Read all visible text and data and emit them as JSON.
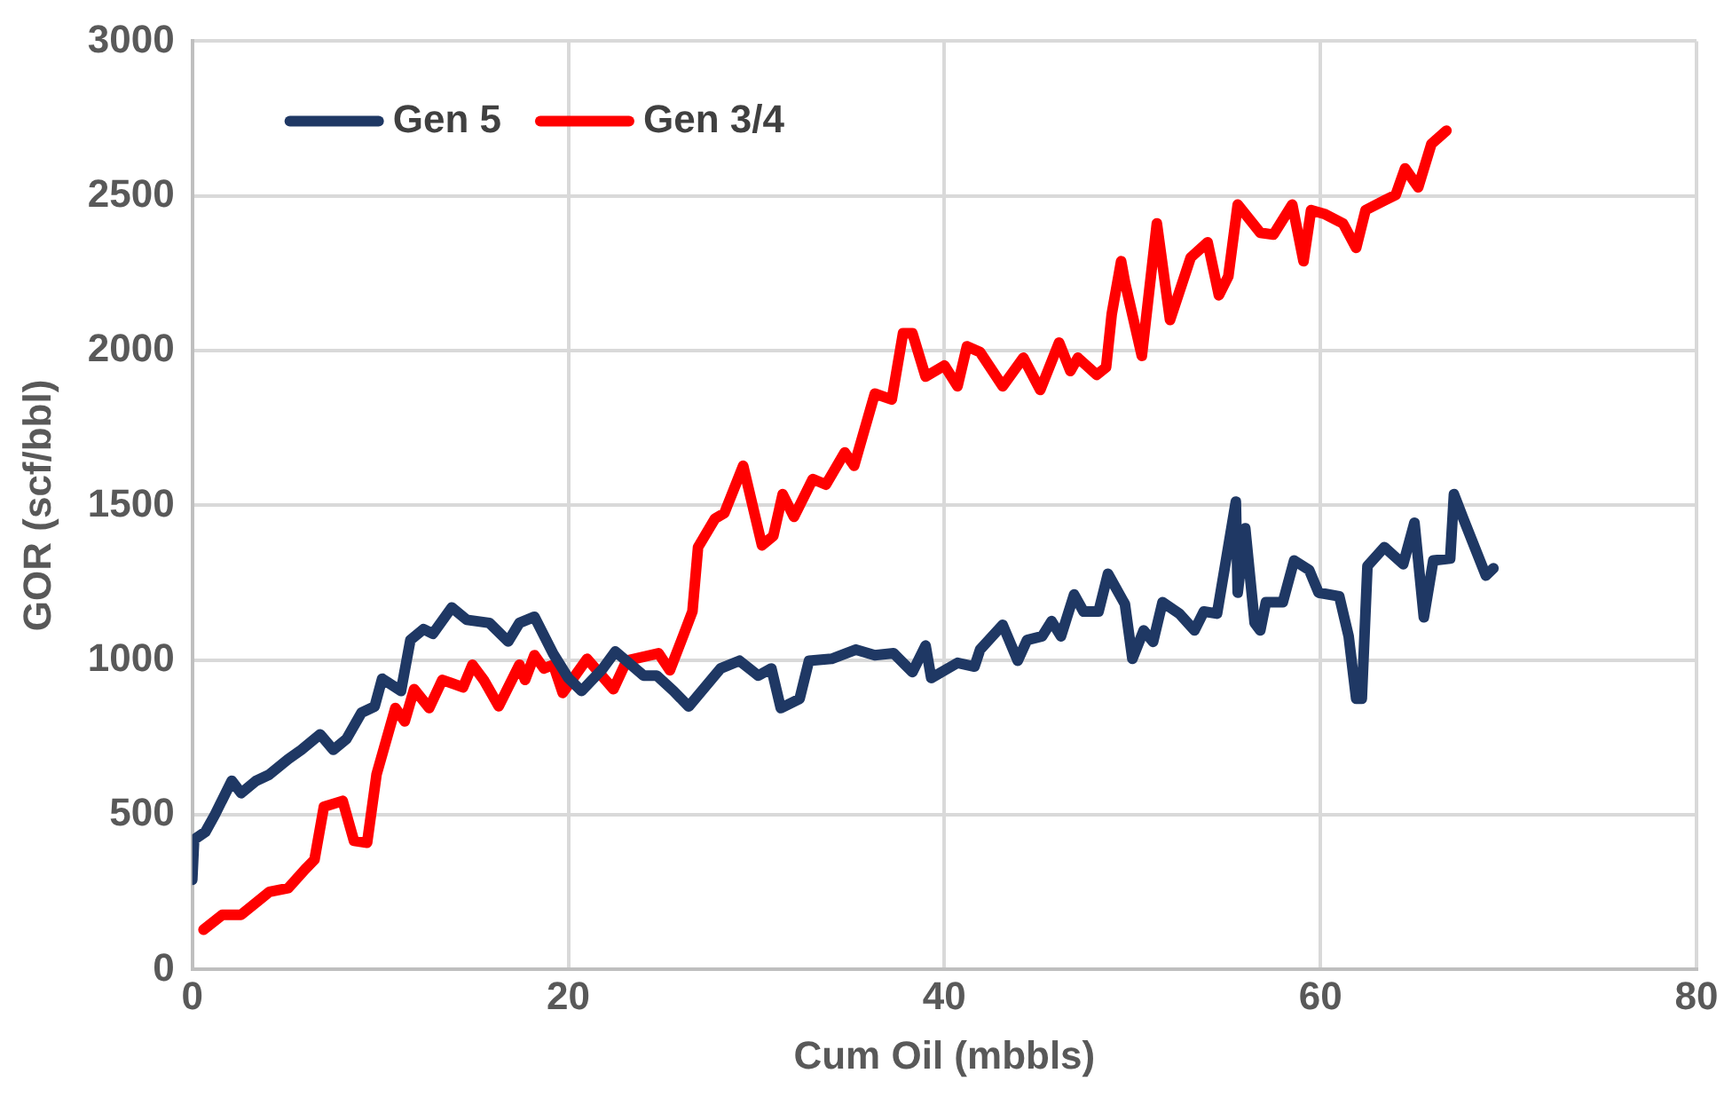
{
  "chart_data": {
    "type": "line",
    "xlabel": "Cum Oil (mbbls)",
    "ylabel": "GOR (scf/bbl)",
    "xlim": [
      0,
      80
    ],
    "xticks": [
      0,
      20,
      40,
      60,
      80
    ],
    "ylim": [
      0,
      3000
    ],
    "yticks": [
      0,
      500,
      1000,
      1500,
      2000,
      2500,
      3000
    ],
    "grid": true,
    "legend": "top left",
    "marker": "none",
    "line_style": "solid",
    "series": [
      {
        "name": "Gen 5",
        "color": "#1f3864",
        "x": [
          0,
          0.1,
          0.7,
          1.2,
          2.1,
          2.6,
          3.4,
          4.1,
          5.1,
          5.8,
          6.8,
          7.5,
          8.2,
          9.0,
          9.7,
          10.1,
          11.1,
          11.6,
          12.3,
          12.8,
          13.8,
          14.6,
          15.8,
          16.8,
          17.4,
          18.2,
          19.2,
          20.0,
          20.7,
          21.8,
          22.5,
          24.0,
          24.7,
          25.6,
          26.4,
          28.1,
          29.1,
          30.1,
          30.8,
          31.3,
          32.3,
          32.8,
          34.0,
          35.3,
          36.3,
          37.3,
          38.3,
          39.0,
          39.3,
          40.7,
          41.6,
          41.9,
          43.1,
          43.9,
          44.4,
          45.2,
          45.7,
          46.2,
          46.9,
          47.4,
          48.2,
          48.7,
          49.6,
          50.0,
          50.6,
          51.1,
          51.6,
          52.5,
          53.3,
          53.8,
          54.5,
          55.5,
          55.6,
          56.0,
          56.5,
          56.8,
          57.1,
          58.0,
          58.6,
          59.4,
          59.9,
          61.0,
          61.5,
          61.9,
          62.2,
          62.5,
          63.4,
          64.4,
          65.0,
          65.5,
          66.0,
          66.9,
          67.1,
          67.6,
          68.2,
          68.8,
          69.2
        ],
        "values": [
          290,
          420,
          445,
          500,
          610,
          570,
          610,
          630,
          680,
          710,
          760,
          710,
          745,
          830,
          850,
          940,
          900,
          1065,
          1100,
          1085,
          1170,
          1130,
          1120,
          1060,
          1120,
          1140,
          1020,
          942,
          900,
          970,
          1028,
          950,
          950,
          900,
          850,
          973,
          998,
          950,
          973,
          845,
          875,
          998,
          1004,
          1034,
          1016,
          1022,
          961,
          1047,
          942,
          991,
          979,
          1034,
          1114,
          998,
          1065,
          1077,
          1126,
          1077,
          1212,
          1157,
          1157,
          1279,
          1181,
          1004,
          1096,
          1059,
          1187,
          1150,
          1096,
          1157,
          1150,
          1512,
          1218,
          1426,
          1120,
          1096,
          1187,
          1187,
          1322,
          1291,
          1218,
          1206,
          1077,
          875,
          875,
          1304,
          1365,
          1310,
          1444,
          1138,
          1322,
          1328,
          1536,
          1457,
          1365,
          1273,
          1297
        ]
      },
      {
        "name": "Gen 3/4",
        "color": "#ff0000",
        "x": [
          0.6,
          1.6,
          2.6,
          4.1,
          5.1,
          6.0,
          6.5,
          7.0,
          8.0,
          8.6,
          9.3,
          9.8,
          10.8,
          11.3,
          11.8,
          12.6,
          13.3,
          14.4,
          14.9,
          15.5,
          16.3,
          17.4,
          17.7,
          18.2,
          18.7,
          19.2,
          19.7,
          21.0,
          22.4,
          23.1,
          24.8,
          25.4,
          26.1,
          26.6,
          26.9,
          27.8,
          28.3,
          29.3,
          30.3,
          30.9,
          31.4,
          32.0,
          33.0,
          33.7,
          34.7,
          35.2,
          36.3,
          37.2,
          37.8,
          38.3,
          39.0,
          40.0,
          40.7,
          41.2,
          41.9,
          43.1,
          44.2,
          45.1,
          46.1,
          46.7,
          47.1,
          48.1,
          48.6,
          48.9,
          49.4,
          49.6,
          50.5,
          51.3,
          52.0,
          53.1,
          54.0,
          54.6,
          55.1,
          55.6,
          56.8,
          57.5,
          58.5,
          59.1,
          59.5,
          60.2,
          61.2,
          61.9,
          62.4,
          63.4,
          64.0,
          64.5,
          65.2,
          65.9,
          66.7
        ],
        "values": [
          129,
          177,
          177,
          251,
          263,
          324,
          355,
          526,
          545,
          416,
          410,
          630,
          845,
          802,
          906,
          845,
          936,
          912,
          985,
          936,
          851,
          985,
          936,
          1016,
          973,
          985,
          894,
          1004,
          906,
          998,
          1022,
          967,
          1077,
          1157,
          1365,
          1457,
          1475,
          1628,
          1371,
          1401,
          1536,
          1463,
          1585,
          1567,
          1671,
          1628,
          1861,
          1842,
          2056,
          2056,
          1916,
          1952,
          1885,
          2014,
          1995,
          1885,
          1977,
          1873,
          2026,
          1934,
          1977,
          1922,
          1946,
          2118,
          2289,
          2222,
          1983,
          2411,
          2099,
          2301,
          2350,
          2179,
          2240,
          2472,
          2381,
          2375,
          2472,
          2289,
          2454,
          2442,
          2411,
          2332,
          2454,
          2485,
          2503,
          2589,
          2528,
          2668,
          2711
        ]
      }
    ]
  }
}
